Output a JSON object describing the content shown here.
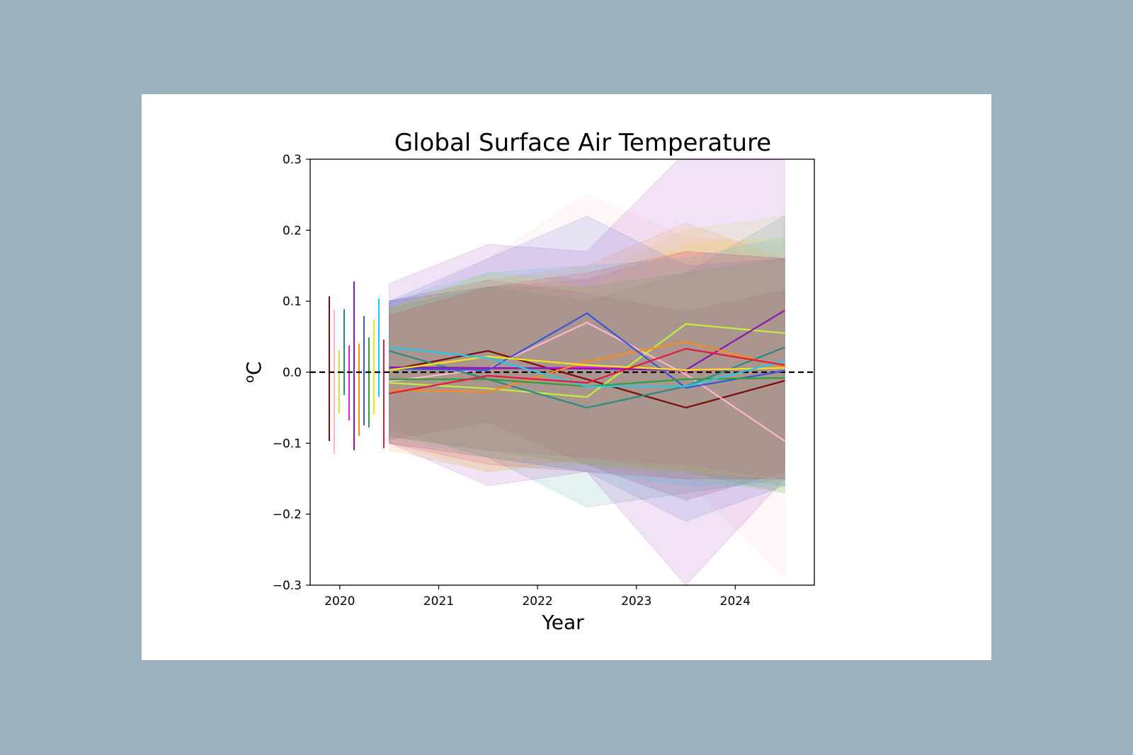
{
  "colors": {
    "background": "#9bb2be",
    "card": "#ffffff",
    "zero_line": "#000000"
  },
  "chart_data": {
    "type": "line",
    "title": "Global Surface Air Temperature",
    "xlabel": "Year",
    "ylabel": "oC",
    "ylim": [
      -0.3,
      0.3
    ],
    "xlim": [
      2019.7,
      2024.8
    ],
    "xticks": [
      2020,
      2021,
      2022,
      2023,
      2024
    ],
    "xtick_labels": [
      "2020",
      "2021",
      "2022",
      "2023",
      "2024"
    ],
    "yticks": [
      -0.3,
      -0.2,
      -0.1,
      0.0,
      0.1,
      0.2,
      0.3
    ],
    "ytick_labels": [
      "−0.3",
      "−0.2",
      "−0.1",
      "0.0",
      "0.1",
      "0.2",
      "0.3"
    ],
    "grid": false,
    "reference_line": {
      "y": 0.0,
      "style": "dashed",
      "color": "#000000"
    },
    "x": [
      2020.5,
      2021.5,
      2022.5,
      2023.5,
      2024.5
    ],
    "series": [
      {
        "color": "#7b0a0a",
        "values": [
          0.003,
          0.03,
          -0.01,
          -0.05,
          -0.012
        ],
        "lower": [
          -0.095,
          -0.07,
          -0.13,
          -0.18,
          -0.14
        ],
        "upper": [
          0.1,
          0.13,
          0.11,
          0.085,
          0.115
        ],
        "spread": [
          -0.097,
          0.107
        ]
      },
      {
        "color": "#ffb6c8",
        "values": [
          -0.013,
          0.005,
          0.07,
          -0.003,
          -0.097
        ],
        "lower": [
          -0.1,
          -0.12,
          -0.13,
          -0.15,
          -0.29
        ],
        "upper": [
          0.09,
          0.16,
          0.25,
          0.19,
          0.18
        ],
        "spread": [
          -0.115,
          0.088
        ]
      },
      {
        "color": "#c2ef3b",
        "values": [
          -0.015,
          -0.023,
          -0.035,
          0.068,
          0.055
        ],
        "lower": [
          -0.1,
          -0.14,
          -0.13,
          -0.15,
          -0.17
        ],
        "upper": [
          0.09,
          0.14,
          0.13,
          0.2,
          0.22
        ],
        "spread": [
          -0.058,
          0.031
        ]
      },
      {
        "color": "#2a8a84",
        "values": [
          0.03,
          -0.01,
          -0.05,
          -0.02,
          0.035
        ],
        "lower": [
          -0.08,
          -0.12,
          -0.19,
          -0.17,
          -0.15
        ],
        "upper": [
          0.1,
          0.12,
          0.1,
          0.14,
          0.22
        ],
        "spread": [
          -0.032,
          0.089
        ]
      },
      {
        "color": "#e020d8",
        "values": [
          0.006,
          0.005,
          0.007,
          0.002,
          0.006
        ],
        "lower": [
          -0.09,
          -0.11,
          -0.12,
          -0.13,
          -0.15
        ],
        "upper": [
          0.1,
          0.12,
          0.13,
          0.17,
          0.16
        ],
        "spread": [
          -0.068,
          0.038
        ]
      },
      {
        "color": "#8a18b0",
        "values": [
          0.007,
          0.006,
          0.005,
          0.003,
          0.087
        ],
        "lower": [
          -0.1,
          -0.16,
          -0.14,
          -0.3,
          -0.15
        ],
        "upper": [
          0.125,
          0.18,
          0.17,
          0.31,
          0.31
        ],
        "spread": [
          -0.11,
          0.128
        ]
      },
      {
        "color": "#ff8a1c",
        "values": [
          -0.025,
          -0.028,
          0.015,
          0.043,
          0.007
        ],
        "lower": [
          -0.11,
          -0.14,
          -0.12,
          -0.14,
          -0.16
        ],
        "upper": [
          0.09,
          0.13,
          0.15,
          0.21,
          0.16
        ],
        "spread": [
          -0.09,
          0.04
        ]
      },
      {
        "color": "#3a55d8",
        "values": [
          0.005,
          0.003,
          0.083,
          -0.022,
          0.002
        ],
        "lower": [
          -0.1,
          -0.12,
          -0.14,
          -0.21,
          -0.16
        ],
        "upper": [
          0.1,
          0.16,
          0.22,
          0.15,
          0.16
        ],
        "spread": [
          -0.075,
          0.079
        ]
      },
      {
        "color": "#2f9e3c",
        "values": [
          -0.01,
          -0.01,
          -0.02,
          -0.01,
          -0.008
        ],
        "lower": [
          -0.09,
          -0.11,
          -0.13,
          -0.14,
          -0.17
        ],
        "upper": [
          0.09,
          0.12,
          0.12,
          0.14,
          0.16
        ],
        "spread": [
          -0.078,
          0.049
        ]
      },
      {
        "color": "#f5e51c",
        "values": [
          0.003,
          0.022,
          0.01,
          0.003,
          0.006
        ],
        "lower": [
          -0.09,
          -0.12,
          -0.13,
          -0.14,
          -0.15
        ],
        "upper": [
          0.09,
          0.14,
          0.12,
          0.18,
          0.19
        ],
        "spread": [
          -0.06,
          0.074
        ]
      },
      {
        "color": "#22c8f0",
        "values": [
          0.035,
          0.02,
          -0.02,
          -0.02,
          0.016
        ],
        "lower": [
          -0.09,
          -0.12,
          -0.14,
          -0.16,
          -0.16
        ],
        "upper": [
          0.1,
          0.14,
          0.15,
          0.16,
          0.19
        ],
        "spread": [
          -0.035,
          0.104
        ]
      },
      {
        "color": "#e2183c",
        "values": [
          -0.03,
          -0.005,
          -0.015,
          0.033,
          0.01
        ],
        "lower": [
          -0.1,
          -0.13,
          -0.14,
          -0.15,
          -0.15
        ],
        "upper": [
          0.08,
          0.12,
          0.14,
          0.17,
          0.16
        ],
        "spread": [
          -0.107,
          0.046
        ]
      }
    ]
  }
}
